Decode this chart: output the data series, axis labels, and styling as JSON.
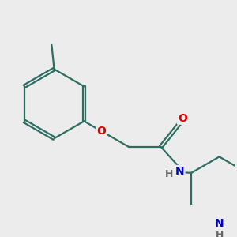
{
  "background_color": "#ececec",
  "bond_color": "#2d6e62",
  "atom_colors": {
    "O": "#dd0000",
    "N": "#0000cc",
    "H_amide": "#666666",
    "H_pip": "#666666"
  },
  "figsize": [
    3.0,
    3.0
  ],
  "dpi": 100,
  "bond_lw": 1.6,
  "font_size_atom": 10,
  "font_size_H": 9
}
